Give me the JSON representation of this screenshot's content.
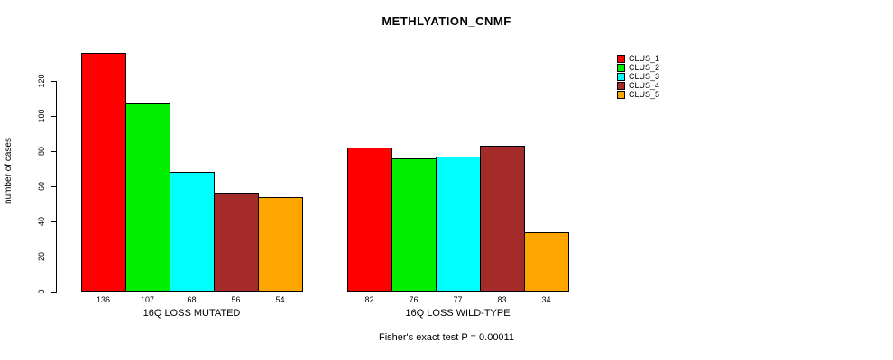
{
  "title": "METHLYATION_CNMF",
  "subtitle": "Fisher's exact test P = 0.00011",
  "chart_data": {
    "type": "bar",
    "title": "METHLYATION_CNMF",
    "ylabel": "number of cases",
    "xlabel": "",
    "yticks": [
      0,
      20,
      40,
      60,
      80,
      100,
      120
    ],
    "ylim": [
      0,
      140
    ],
    "grid": false,
    "legend_position": "top-right",
    "annotation": "Fisher's exact test P = 0.00011",
    "groups": [
      {
        "label": "16Q LOSS MUTATED",
        "values": [
          136,
          107,
          68,
          56,
          54
        ]
      },
      {
        "label": "16Q LOSS WILD-TYPE",
        "values": [
          82,
          76,
          77,
          83,
          34
        ]
      }
    ],
    "series": [
      {
        "name": "CLUS_1",
        "color": "#ff0000"
      },
      {
        "name": "CLUS_2",
        "color": "#00ee00"
      },
      {
        "name": "CLUS_3",
        "color": "#00ffff"
      },
      {
        "name": "CLUS_4",
        "color": "#a52a2a"
      },
      {
        "name": "CLUS_5",
        "color": "#ffa500"
      }
    ]
  }
}
